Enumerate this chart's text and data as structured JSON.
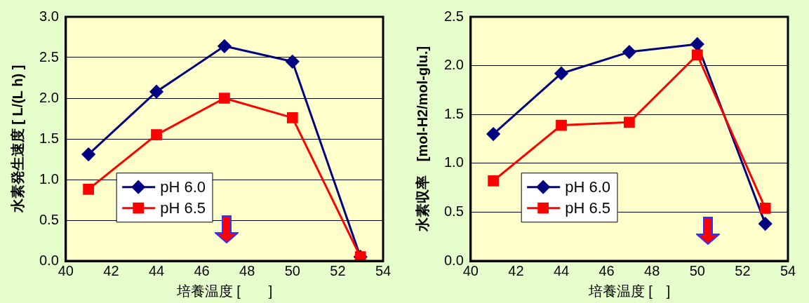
{
  "chart_data": [
    {
      "type": "line",
      "xlabel": "培養温度 [　　]",
      "ylabel": "水素発生速度 [ L/(L h) ]",
      "x": [
        41,
        44,
        47,
        50,
        53
      ],
      "series": [
        {
          "name": "pH 6.0",
          "color": "#000080",
          "marker": "diamond",
          "values": [
            1.31,
            2.08,
            2.64,
            2.45,
            0.05
          ]
        },
        {
          "name": "pH 6.5",
          "color": "#ff0000",
          "marker": "square",
          "values": [
            0.88,
            1.55,
            2.0,
            1.76,
            0.05
          ]
        }
      ],
      "xlim": [
        40,
        54
      ],
      "xticks": [
        40,
        42,
        44,
        46,
        48,
        50,
        52,
        54
      ],
      "ylim": [
        0,
        3
      ],
      "yticks": [
        {
          "value": 0,
          "label": "0.0"
        },
        {
          "value": 0.5,
          "label": "0.5"
        },
        {
          "value": 1,
          "label": "1.0"
        },
        {
          "value": 1.5,
          "label": "1.5"
        },
        {
          "value": 2,
          "label": "2.0"
        },
        {
          "value": 2.5,
          "label": "2.5"
        },
        {
          "value": 3,
          "label": "3.0"
        }
      ],
      "grid": "y",
      "legend": "bottom left"
    },
    {
      "type": "line",
      "xlabel": "培養温度 [　]",
      "ylabel": "水素収率　[mol-H2/mol-glu.]",
      "x": [
        41,
        44,
        47,
        50,
        53
      ],
      "series": [
        {
          "name": "pH 6.0",
          "color": "#000080",
          "marker": "diamond",
          "values": [
            1.3,
            1.92,
            2.14,
            2.22,
            0.38
          ]
        },
        {
          "name": "pH 6.5",
          "color": "#ff0000",
          "marker": "square",
          "values": [
            0.82,
            1.39,
            1.42,
            2.11,
            0.54
          ]
        }
      ],
      "xlim": [
        40,
        54
      ],
      "xticks": [
        40,
        42,
        44,
        46,
        48,
        50,
        52,
        54
      ],
      "ylim": [
        0,
        2.5
      ],
      "yticks": [
        {
          "value": 0,
          "label": "0.0"
        },
        {
          "value": 0.5,
          "label": "0.5"
        },
        {
          "value": 1,
          "label": "1.0"
        },
        {
          "value": 1.5,
          "label": "1.5"
        },
        {
          "value": 2,
          "label": "2.0"
        },
        {
          "value": 2.5,
          "label": "2.5"
        }
      ],
      "grid": "y",
      "legend": "bottom left"
    }
  ]
}
